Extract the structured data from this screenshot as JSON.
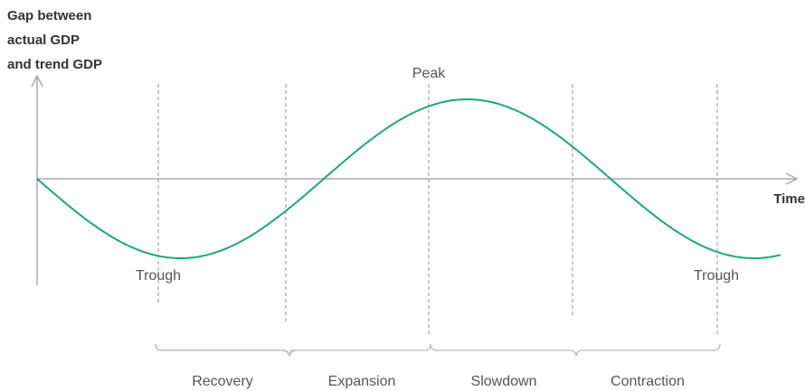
{
  "y_axis_label": [
    "Gap between",
    "actual GDP",
    "and trend GDP"
  ],
  "x_axis_label": "Time",
  "annotations": {
    "peak": "Peak",
    "trough_left": "Trough",
    "trough_right": "Trough"
  },
  "phases": [
    "Recovery",
    "Expansion",
    "Slowdown",
    "Contraction"
  ],
  "colors": {
    "curve": "#1aa87a",
    "axis": "#aaaaaa",
    "divider": "#aaaaaa",
    "bracket": "#bbbbbb"
  }
}
